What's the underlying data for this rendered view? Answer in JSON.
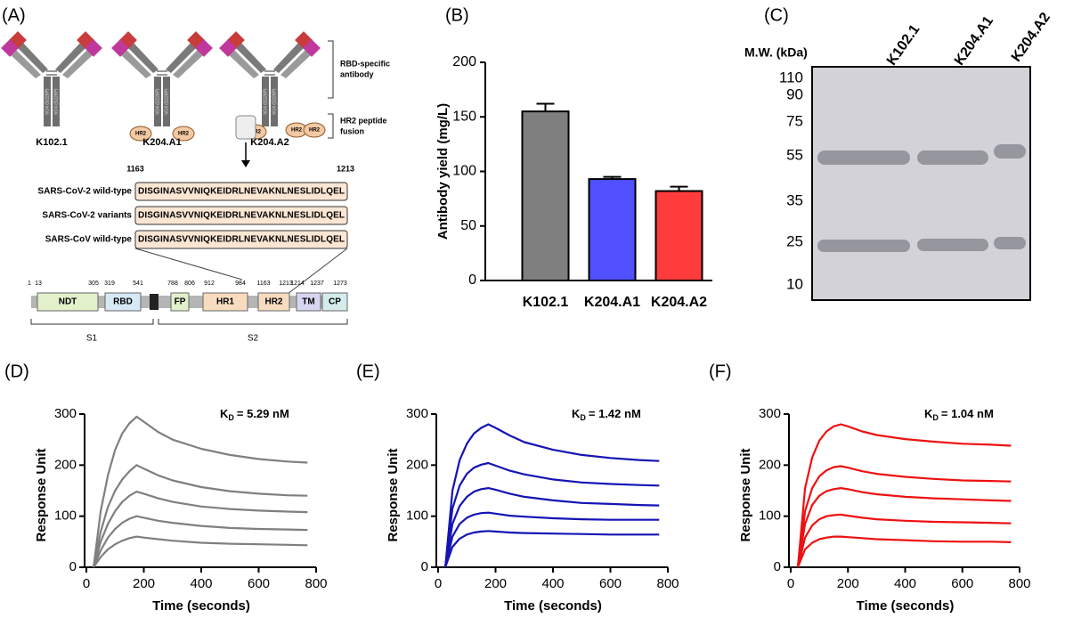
{
  "diagram": {
    "label": "(A)",
    "antibodies": [
      "K102.1",
      "K204.A1",
      "K204.A2"
    ],
    "chain_label": "hG4 (S228P)",
    "peptide": "HR2",
    "brackets": [
      [
        "RBD-specific",
        "antibody"
      ],
      [
        "HR2 peptide",
        "fusion"
      ]
    ],
    "sequence": {
      "start": "1163",
      "end": "1213",
      "rows": [
        {
          "name": "SARS-CoV-2 wild-type",
          "seq": "DISGINASVVNIQKEIDRLNEVAKNLNESLIDLQEL"
        },
        {
          "name": "SARS-CoV-2 variants",
          "seq": "DISGINASVVNIQKEIDRLNEVAKNLNESLIDLQEL"
        },
        {
          "name": "SARS-CoV wild-type",
          "seq": "DISGINASVVNIQKEIDRLNEVAKNLNESLIDLQEL"
        }
      ]
    },
    "domain_map": {
      "positions": [
        "1",
        "13",
        "305",
        "319",
        "541",
        "788",
        "806",
        "912",
        "984",
        "1163",
        "1213",
        "1214",
        "1237",
        "1273"
      ],
      "domains": [
        "NDT",
        "RBD",
        "FP",
        "HR1",
        "HR2",
        "TM",
        "CP"
      ],
      "regions": [
        "S1",
        "S2"
      ]
    }
  },
  "gel": {
    "label": "(C)",
    "mw_title": "M.W. (kDa)",
    "lanes": [
      "K102.1",
      "K204.A1",
      "K204.A2"
    ],
    "markers": [
      "110",
      "90",
      "75",
      "55",
      "35",
      "25",
      "10"
    ]
  },
  "chart_data": [
    {
      "type": "bar",
      "label": "(B)",
      "ylabel": "Antibody yield (mg/L)",
      "categories": [
        "K102.1",
        "K204.A1",
        "K204.A2"
      ],
      "values": [
        155,
        93,
        82
      ],
      "errors": [
        7,
        2,
        4
      ],
      "colors": [
        "#7f7f7f",
        "#5050ff",
        "#ff3c3c"
      ],
      "ylim": [
        0,
        200
      ],
      "yticks": [
        0,
        50,
        100,
        150,
        200
      ]
    },
    {
      "type": "line",
      "label": "(D)",
      "xlabel": "Time (seconds)",
      "ylabel": "Response Unit",
      "color": "#7f7f7f",
      "annotation": {
        "symbol": "K",
        "subscript": "D",
        "text": "= 5.29 nM"
      },
      "x": [
        25,
        50,
        75,
        100,
        125,
        150,
        175,
        200,
        250,
        300,
        400,
        500,
        600,
        700,
        770
      ],
      "xlim": [
        0,
        800
      ],
      "xticks": [
        0,
        200,
        400,
        600,
        800
      ],
      "ylim": [
        0,
        300
      ],
      "yticks": [
        0,
        100,
        200,
        300
      ],
      "series": [
        {
          "values": [
            0,
            110,
            180,
            230,
            262,
            282,
            295,
            285,
            265,
            250,
            232,
            220,
            212,
            207,
            205
          ]
        },
        {
          "values": [
            0,
            70,
            118,
            150,
            172,
            188,
            200,
            193,
            180,
            170,
            157,
            149,
            144,
            141,
            140
          ]
        },
        {
          "values": [
            0,
            50,
            85,
            110,
            128,
            140,
            148,
            144,
            135,
            128,
            119,
            114,
            111,
            109,
            108
          ]
        },
        {
          "values": [
            0,
            33,
            58,
            75,
            87,
            95,
            100,
            97,
            91,
            87,
            81,
            77,
            75,
            74,
            73
          ]
        },
        {
          "values": [
            0,
            20,
            35,
            45,
            52,
            57,
            60,
            58,
            55,
            52,
            48,
            46,
            45,
            44,
            43
          ]
        }
      ]
    },
    {
      "type": "line",
      "label": "(E)",
      "xlabel": "Time (seconds)",
      "ylabel": "Response Unit",
      "color": "#1414b4",
      "annotation": {
        "symbol": "K",
        "subscript": "D",
        "text": "= 1.42 nM"
      },
      "x": [
        25,
        50,
        75,
        100,
        125,
        150,
        175,
        200,
        250,
        300,
        400,
        500,
        600,
        700,
        770
      ],
      "xlim": [
        0,
        800
      ],
      "xticks": [
        0,
        200,
        400,
        600,
        800
      ],
      "ylim": [
        0,
        300
      ],
      "yticks": [
        0,
        100,
        200,
        300
      ],
      "series": [
        {
          "values": [
            0,
            150,
            210,
            242,
            262,
            273,
            280,
            273,
            258,
            245,
            230,
            220,
            214,
            210,
            208
          ]
        },
        {
          "values": [
            0,
            115,
            160,
            183,
            195,
            201,
            204,
            199,
            189,
            182,
            172,
            166,
            163,
            161,
            160
          ]
        },
        {
          "values": [
            0,
            85,
            120,
            138,
            148,
            153,
            155,
            152,
            144,
            138,
            131,
            126,
            124,
            122,
            121
          ]
        },
        {
          "values": [
            0,
            60,
            85,
            97,
            103,
            106,
            107,
            105,
            101,
            99,
            96,
            94,
            93,
            93,
            93
          ]
        },
        {
          "values": [
            0,
            40,
            56,
            64,
            68,
            70,
            71,
            70,
            68,
            67,
            66,
            65,
            64,
            64,
            64
          ]
        }
      ]
    },
    {
      "type": "line",
      "label": "(F)",
      "xlabel": "Time (seconds)",
      "ylabel": "Response Unit",
      "color": "#ee1111",
      "annotation": {
        "symbol": "K",
        "subscript": "D",
        "text": "= 1.04 nM"
      },
      "x": [
        25,
        50,
        75,
        100,
        125,
        150,
        175,
        200,
        250,
        300,
        400,
        500,
        600,
        700,
        770
      ],
      "xlim": [
        0,
        800
      ],
      "xticks": [
        0,
        200,
        400,
        600,
        800
      ],
      "ylim": [
        0,
        300
      ],
      "yticks": [
        0,
        100,
        200,
        300
      ],
      "series": [
        {
          "values": [
            0,
            155,
            215,
            248,
            266,
            276,
            280,
            276,
            266,
            259,
            251,
            246,
            242,
            240,
            238
          ]
        },
        {
          "values": [
            0,
            110,
            155,
            178,
            190,
            196,
            198,
            195,
            188,
            183,
            177,
            173,
            170,
            169,
            168
          ]
        },
        {
          "values": [
            0,
            85,
            122,
            140,
            149,
            153,
            155,
            153,
            147,
            143,
            138,
            135,
            133,
            131,
            130
          ]
        },
        {
          "values": [
            0,
            58,
            82,
            94,
            100,
            102,
            103,
            101,
            97,
            94,
            91,
            89,
            88,
            87,
            86
          ]
        },
        {
          "values": [
            0,
            35,
            48,
            55,
            58,
            60,
            60,
            59,
            57,
            55,
            53,
            51,
            50,
            50,
            49
          ]
        }
      ]
    }
  ]
}
